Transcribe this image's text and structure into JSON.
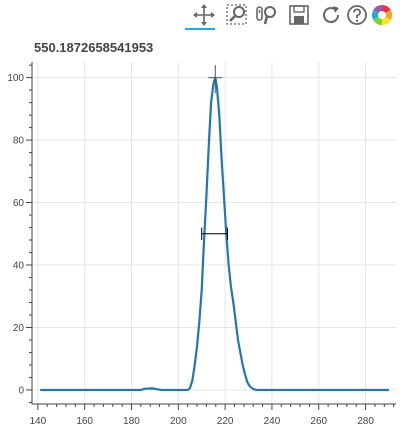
{
  "title": "550.1872658541953",
  "toolbar": {
    "tools": [
      {
        "name": "pan-tool",
        "icon": "move-arrows-icon",
        "active": true
      },
      {
        "name": "box-zoom-tool",
        "icon": "box-zoom-icon",
        "active": false
      },
      {
        "name": "wheel-zoom-tool",
        "icon": "wheel-zoom-icon",
        "active": false
      },
      {
        "name": "save-tool",
        "icon": "save-icon",
        "active": false
      },
      {
        "name": "reset-tool",
        "icon": "reset-icon",
        "active": false
      },
      {
        "name": "help-tool",
        "icon": "help-icon",
        "active": false
      },
      {
        "name": "bokeh-logo",
        "icon": "bokeh-logo-icon",
        "active": false
      }
    ],
    "active_color": "#26aae1"
  },
  "chart_data": {
    "type": "line",
    "title": "550.1872658541953",
    "xlabel": "",
    "ylabel": "",
    "xlim": [
      137.5,
      293
    ],
    "ylim": [
      -4.5,
      105
    ],
    "x_ticks": [
      140,
      160,
      180,
      200,
      220,
      240,
      260,
      280
    ],
    "y_ticks": [
      0,
      20,
      40,
      60,
      80,
      100
    ],
    "grid": true,
    "line_color": "#1f77b4",
    "series": [
      {
        "values": [
          {
            "x": 141,
            "y": 0
          },
          {
            "x": 184,
            "y": 0
          },
          {
            "x": 186,
            "y": 0.4
          },
          {
            "x": 189,
            "y": 0.5
          },
          {
            "x": 191,
            "y": 0.2
          },
          {
            "x": 193,
            "y": 0
          },
          {
            "x": 204,
            "y": 0
          },
          {
            "x": 205,
            "y": 0.6
          },
          {
            "x": 206,
            "y": 3
          },
          {
            "x": 207,
            "y": 8
          },
          {
            "x": 208,
            "y": 14
          },
          {
            "x": 209,
            "y": 22
          },
          {
            "x": 210,
            "y": 32
          },
          {
            "x": 211,
            "y": 48
          },
          {
            "x": 212,
            "y": 62
          },
          {
            "x": 213,
            "y": 78
          },
          {
            "x": 214,
            "y": 92
          },
          {
            "x": 215,
            "y": 98
          },
          {
            "x": 215.8,
            "y": 100
          },
          {
            "x": 216.5,
            "y": 97
          },
          {
            "x": 217.5,
            "y": 88
          },
          {
            "x": 218.5,
            "y": 74
          },
          {
            "x": 219.5,
            "y": 62
          },
          {
            "x": 220.5,
            "y": 50
          },
          {
            "x": 221.5,
            "y": 40
          },
          {
            "x": 222.5,
            "y": 33
          },
          {
            "x": 223.5,
            "y": 28
          },
          {
            "x": 224.5,
            "y": 22
          },
          {
            "x": 225.5,
            "y": 16
          },
          {
            "x": 226.5,
            "y": 12
          },
          {
            "x": 227.5,
            "y": 8
          },
          {
            "x": 228.5,
            "y": 5
          },
          {
            "x": 229.5,
            "y": 2.5
          },
          {
            "x": 230.5,
            "y": 1.2
          },
          {
            "x": 232,
            "y": 0.3
          },
          {
            "x": 233.5,
            "y": 0
          },
          {
            "x": 290,
            "y": 0
          }
        ]
      }
    ],
    "annotations": [
      {
        "type": "cross",
        "x": 215.8,
        "y": 100,
        "half_width": 3,
        "y_low": 95,
        "y_high": 104,
        "color": "#555555"
      },
      {
        "type": "interval",
        "x_start": 210,
        "x_end": 221,
        "y": 50,
        "cap_half_height": 2,
        "color": "#000000"
      }
    ]
  }
}
